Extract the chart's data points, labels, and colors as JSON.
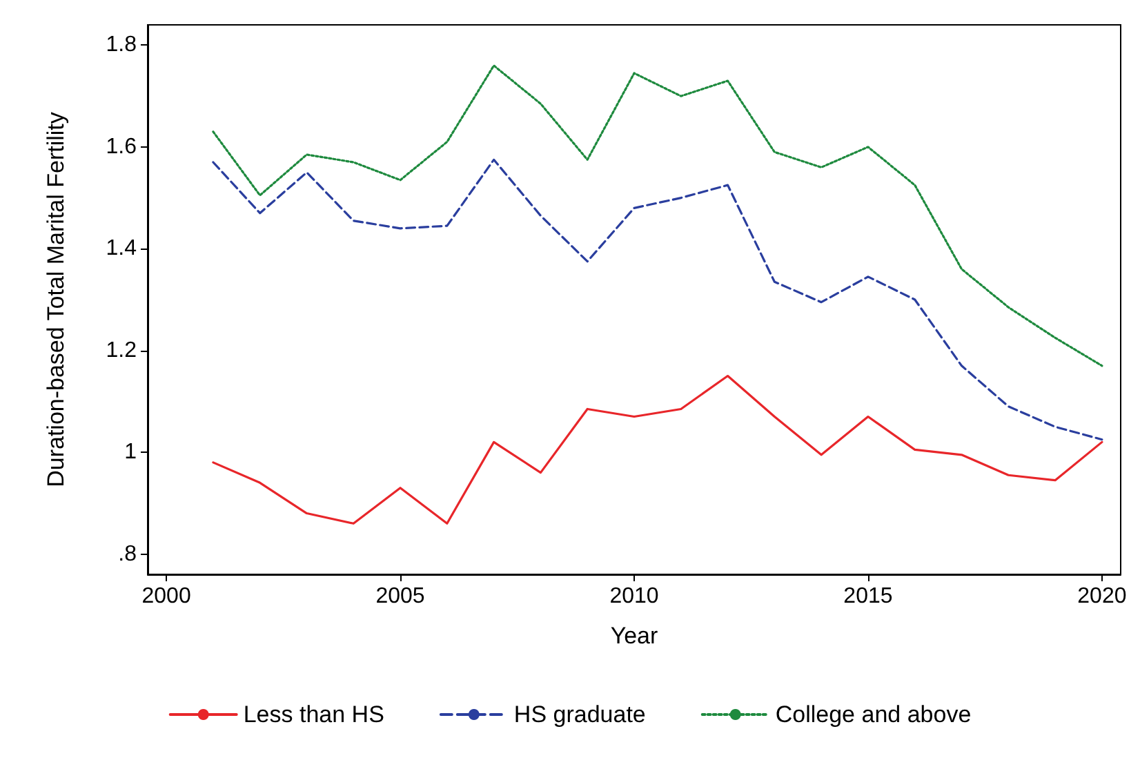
{
  "chart_data": {
    "type": "line",
    "xlabel": "Year",
    "ylabel": "Duration-based Total Marital Fertility",
    "x": [
      2001,
      2002,
      2003,
      2004,
      2005,
      2006,
      2007,
      2008,
      2009,
      2010,
      2011,
      2012,
      2013,
      2014,
      2015,
      2016,
      2017,
      2018,
      2019,
      2020
    ],
    "series": [
      {
        "name": "Less than HS",
        "color": "#e8262a",
        "line_style": "solid",
        "values": [
          0.98,
          0.94,
          0.88,
          0.86,
          0.93,
          0.86,
          1.02,
          0.96,
          1.085,
          1.07,
          1.085,
          1.15,
          1.07,
          0.995,
          1.07,
          1.005,
          0.995,
          0.955,
          0.945,
          1.02
        ]
      },
      {
        "name": "HS graduate",
        "color": "#2a3e9e",
        "line_style": "dashed",
        "values": [
          1.57,
          1.47,
          1.55,
          1.455,
          1.44,
          1.445,
          1.575,
          1.465,
          1.375,
          1.48,
          1.5,
          1.525,
          1.335,
          1.295,
          1.345,
          1.3,
          1.17,
          1.09,
          1.05,
          1.025
        ]
      },
      {
        "name": "College and above",
        "color": "#1e8a3e",
        "line_style": "dotted",
        "values": [
          1.63,
          1.505,
          1.585,
          1.57,
          1.535,
          1.61,
          1.76,
          1.685,
          1.575,
          1.745,
          1.7,
          1.73,
          1.59,
          1.56,
          1.6,
          1.525,
          1.36,
          1.285,
          1.225,
          1.17
        ]
      }
    ],
    "xlim": [
      1999.6,
      2020.4
    ],
    "xticks": [
      2000,
      2005,
      2010,
      2015,
      2020
    ],
    "ylim": [
      0.76,
      1.84
    ],
    "yticks": [
      {
        "value": 0.8,
        "label": ".8"
      },
      1,
      1.2,
      1.4,
      1.6,
      1.8
    ],
    "grid": false,
    "legend": "bottom",
    "marker": "none"
  }
}
